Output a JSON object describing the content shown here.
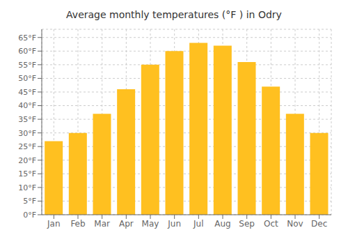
{
  "chart_data": {
    "type": "bar",
    "title": "Average monthly temperatures (°F ) in Odry",
    "categories": [
      "Jan",
      "Feb",
      "Mar",
      "Apr",
      "May",
      "Jun",
      "Jul",
      "Aug",
      "Sep",
      "Oct",
      "Nov",
      "Dec"
    ],
    "values": [
      27,
      30,
      37,
      46,
      55,
      60,
      63,
      62,
      56,
      47,
      37,
      30
    ],
    "color": "#FFC020",
    "ylim": [
      0,
      68
    ],
    "yticks": [
      {
        "value": 0,
        "label": "0°F"
      },
      {
        "value": 5,
        "label": "5°F"
      },
      {
        "value": 10,
        "label": "10°F"
      },
      {
        "value": 15,
        "label": "15°F"
      },
      {
        "value": 20,
        "label": "20°F"
      },
      {
        "value": 25,
        "label": "25°F"
      },
      {
        "value": 30,
        "label": "30°F"
      },
      {
        "value": 35,
        "label": "35°F"
      },
      {
        "value": 40,
        "label": "40°F"
      },
      {
        "value": 45,
        "label": "45°F"
      },
      {
        "value": 50,
        "label": "50°F"
      },
      {
        "value": 55,
        "label": "55°F"
      },
      {
        "value": 60,
        "label": "60°F"
      },
      {
        "value": 65,
        "label": "65°F"
      }
    ],
    "grid": true
  }
}
